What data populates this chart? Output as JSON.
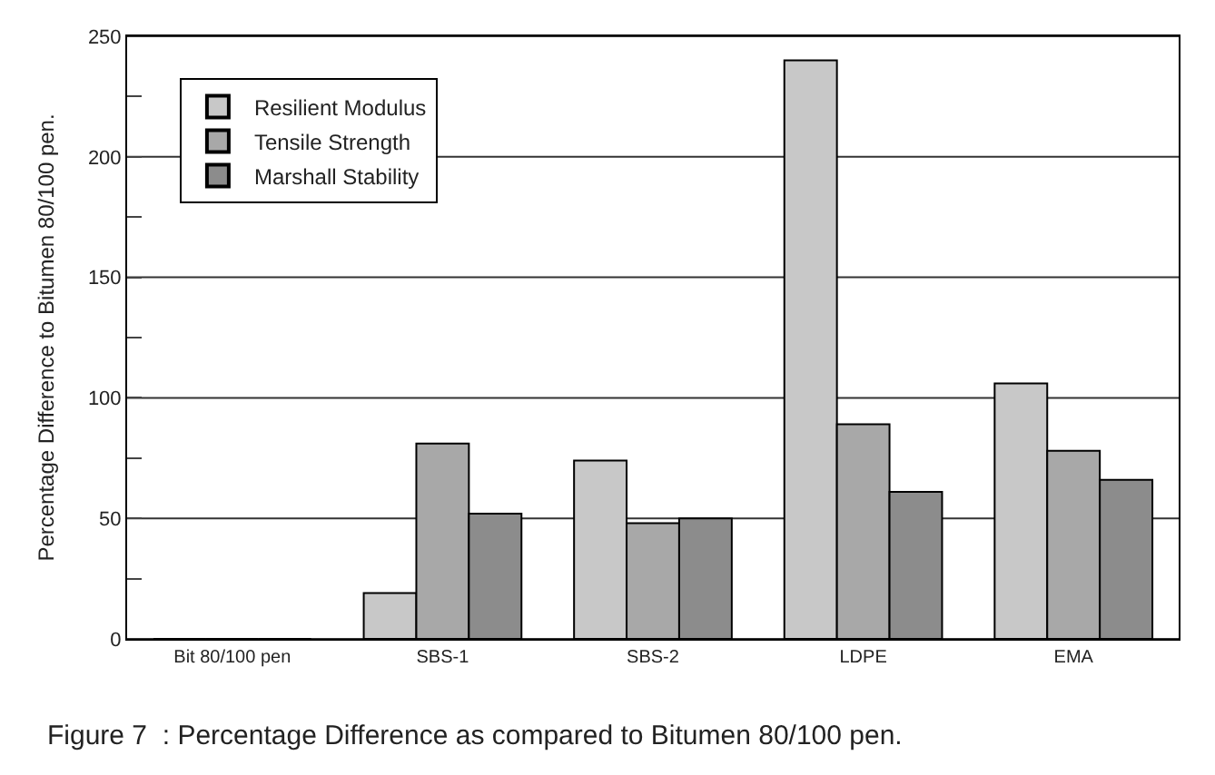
{
  "chart_data": {
    "type": "bar",
    "categories": [
      "Bit 80/100 pen",
      "SBS-1",
      "SBS-2",
      "LDPE",
      "EMA"
    ],
    "series": [
      {
        "name": "Resilient Modulus",
        "color": "#c8c8c8",
        "values": [
          0,
          19,
          74,
          240,
          106
        ]
      },
      {
        "name": "Tensile Strength",
        "color": "#a8a8a8",
        "values": [
          0,
          81,
          48,
          89,
          78
        ]
      },
      {
        "name": "Marshall Stability",
        "color": "#8c8c8c",
        "values": [
          0,
          52,
          50,
          61,
          66
        ]
      }
    ],
    "ylabel": "Percentage Difference to Bitumen 80/100 pen.",
    "ylim": [
      0,
      250
    ],
    "yticks": [
      0,
      {
        "value": 25,
        "label": null
      },
      50,
      {
        "value": 75,
        "label": null
      },
      100,
      {
        "value": 125,
        "label": null
      },
      150,
      {
        "value": 175,
        "label": null
      },
      200,
      {
        "value": 225,
        "label": null
      },
      250
    ],
    "grid": "y",
    "legend": "top left",
    "annotations": [
      "Figure 7  : Percentage Difference as compared to Bitumen 80/100 pen."
    ]
  }
}
